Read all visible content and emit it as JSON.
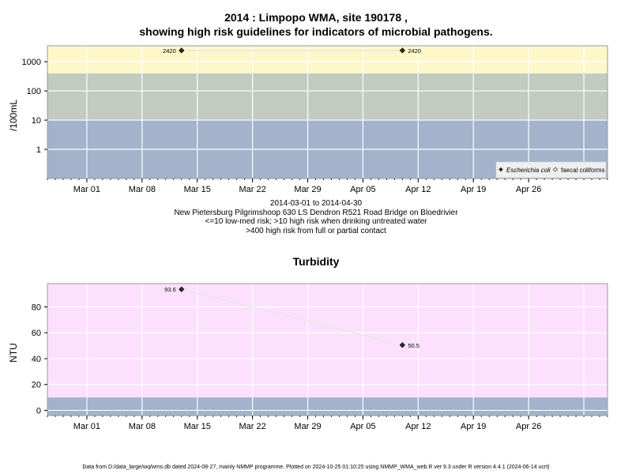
{
  "title_line1": "2014 : Limpopo WMA, site 190178 ,",
  "title_line2": "showing high risk guidelines for indicators of microbial pathogens.",
  "subtitle_lines": [
    "2014-03-01 to 2014-04-30",
    "New Pietersburg Pilgrimshoop 630 LS Dendron R521 Road Bridge on Bloedrivier",
    "<=10 low-med risk; >10 high risk when drinking untreated water",
    ">400 high risk from full or partial contact"
  ],
  "footer": "Data from D:/data_large/wq/wms.db dated 2024-08-27, mainly NMMP programme. Plotted on 2024-10-25 01:10:25 using NMMP_WMA_web.R ver 9.3 under R version 4.4.1 (2024-06-14 ucrt)",
  "x_tick_labels": [
    "Mar 01",
    "Mar 08",
    "Mar 15",
    "Mar 22",
    "Mar 29",
    "Apr 05",
    "Apr 12",
    "Apr 19",
    "Apr 26"
  ],
  "chart_data": [
    {
      "type": "line",
      "ylabel": "/100mL",
      "yscale": "log",
      "yticks": [
        1,
        10,
        100,
        1000
      ],
      "ylim": [
        0.1,
        3500
      ],
      "xlim": [
        "2014-02-24",
        "2014-05-06"
      ],
      "bands": [
        {
          "from": 0.1,
          "to": 10,
          "color": "#a2b3cb"
        },
        {
          "from": 10,
          "to": 400,
          "color": "#c1cbc0"
        },
        {
          "from": 400,
          "to": 3500,
          "color": "#fdf7c9"
        }
      ],
      "series": [
        {
          "name": "Escherichia coli",
          "marker": "filled-diamond",
          "x": [
            "2014-03-13",
            "2014-04-10"
          ],
          "y": [
            2420,
            2420
          ],
          "labels": [
            "2420",
            "2420"
          ]
        },
        {
          "name": "faecal coliforms",
          "marker": "open-diamond",
          "x": [],
          "y": []
        }
      ],
      "legend": "bottom-right"
    },
    {
      "type": "line",
      "title": "Turbidity",
      "ylabel": "NTU",
      "yticks": [
        0,
        20,
        40,
        60,
        80
      ],
      "ylim": [
        -4,
        98
      ],
      "xlim": [
        "2014-02-24",
        "2014-05-06"
      ],
      "bands": [
        {
          "from": -4,
          "to": 10,
          "color": "#a2b3cb"
        },
        {
          "from": 10,
          "to": 98,
          "color": "#fde0fd"
        }
      ],
      "series": [
        {
          "marker": "filled-diamond",
          "x": [
            "2014-03-13",
            "2014-04-10"
          ],
          "y": [
            93.6,
            50.5
          ],
          "labels": [
            "93.6",
            "50.5"
          ]
        }
      ]
    }
  ]
}
